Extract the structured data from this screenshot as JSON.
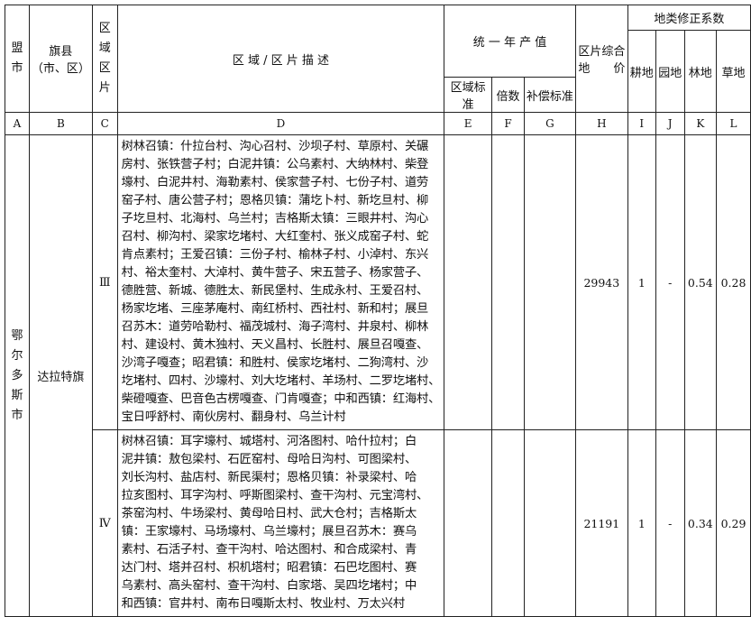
{
  "header": {
    "league_city": [
      "盟",
      "市"
    ],
    "county": "旗县",
    "county_sub": "（市、区）",
    "zone": [
      "区",
      "域",
      "区",
      "片"
    ],
    "description": "区 域 / 区 片 描 述",
    "annual_output": "统 一 年 产 值",
    "regional_standard": "区域标准",
    "multiple": "倍数",
    "compensation_standard": "补偿标准",
    "zone_price_line1": "区片综合",
    "zone_price_line2": "地　　价",
    "correction": "地类修正系数",
    "cultivated": "耕地",
    "garden": "园地",
    "forest": "林地",
    "grass": "草地"
  },
  "letters": [
    "A",
    "B",
    "C",
    "D",
    "E",
    "F",
    "G",
    "H",
    "I",
    "J",
    "K",
    "L"
  ],
  "city": [
    "鄂",
    "尔",
    "多",
    "斯",
    "市"
  ],
  "county": "达拉特旗",
  "rows": [
    {
      "zone": "Ⅲ",
      "description": [
        "树林召镇：什拉台村、沟心召村、沙坝子村、草原村、关碾",
        "房村、张铁营子村；白泥井镇：公乌素村、大纳林村、柴登",
        "壕村、白泥井村、海勒素村、侯家营子村、七份子村、道劳",
        "窑子村、唐公营子村；恩格贝镇：蒲圪卜村、新圪旦村、柳",
        "子圪旦村、北海村、乌兰村；吉格斯太镇：三眼井村、沟心",
        "召村、柳沟村、梁家圪堵村、大红奎村、张义成窑子村、蛇",
        "肯点素村；王爱召镇：三份子村、榆林子村、小淖村、东兴",
        "村、裕太奎村、大淖村、黄牛营子、宋五营子、杨家营子、",
        "德胜营、新城、德胜太、新民堡村、生成永村、王爱召村、",
        "杨家圪堵、三座茅庵村、南红桥村、西社村、新和村；展旦",
        "召苏木：道劳哈勒村、福茂城村、海子湾村、井泉村、柳林",
        "村、建设村、黄木独村、天义昌村、长胜村、展旦召嘎查、",
        "沙湾子嘎查；昭君镇：和胜村、侯家圪堵村、二狗湾村、沙",
        "圪堵村、四村、沙壕村、刘大圪堵村、羊场村、二罗圪堵村、",
        "柴磴嘎查、巴音色古楞嘎查、门肯嘎查；中和西镇：红海村、",
        "宝日呼舒村、南伙房村、翻身村、乌兰计村"
      ],
      "zone_price": "29943",
      "cultivated": "1",
      "garden": "-",
      "forest": "0.54",
      "grass": "0.28"
    },
    {
      "zone": "Ⅳ",
      "description": [
        "树林召镇：耳字壕村、城塔村、河洛图村、哈什拉村；白",
        "泥井镇：敖包梁村、石匠窑村、母哈日沟村、可图梁村、",
        "刘长沟村、盐店村、新民渠村；恩格贝镇：补录梁村、哈",
        "拉亥图村、耳字沟村、呼斯图梁村、查干沟村、元宝湾村、",
        "茶窑沟村、牛场梁村、黄母哈日村、武大仓村；吉格斯太",
        "镇：王家壕村、马场壕村、乌兰壕村；展旦召苏木：赛乌",
        "素村、石活子村、查干沟村、哈达图村、和合成梁村、青",
        "达门村、塔并召村、枳机塔村；昭君镇：石巴圪图村、赛",
        "乌素村、高头窑村、查干沟村、白家塔、吴四圪堵村；中",
        "和西镇：官井村、南布日嘎斯太村、牧业村、万太兴村"
      ],
      "zone_price": "21191",
      "cultivated": "1",
      "garden": "-",
      "forest": "0.34",
      "grass": "0.29"
    }
  ]
}
